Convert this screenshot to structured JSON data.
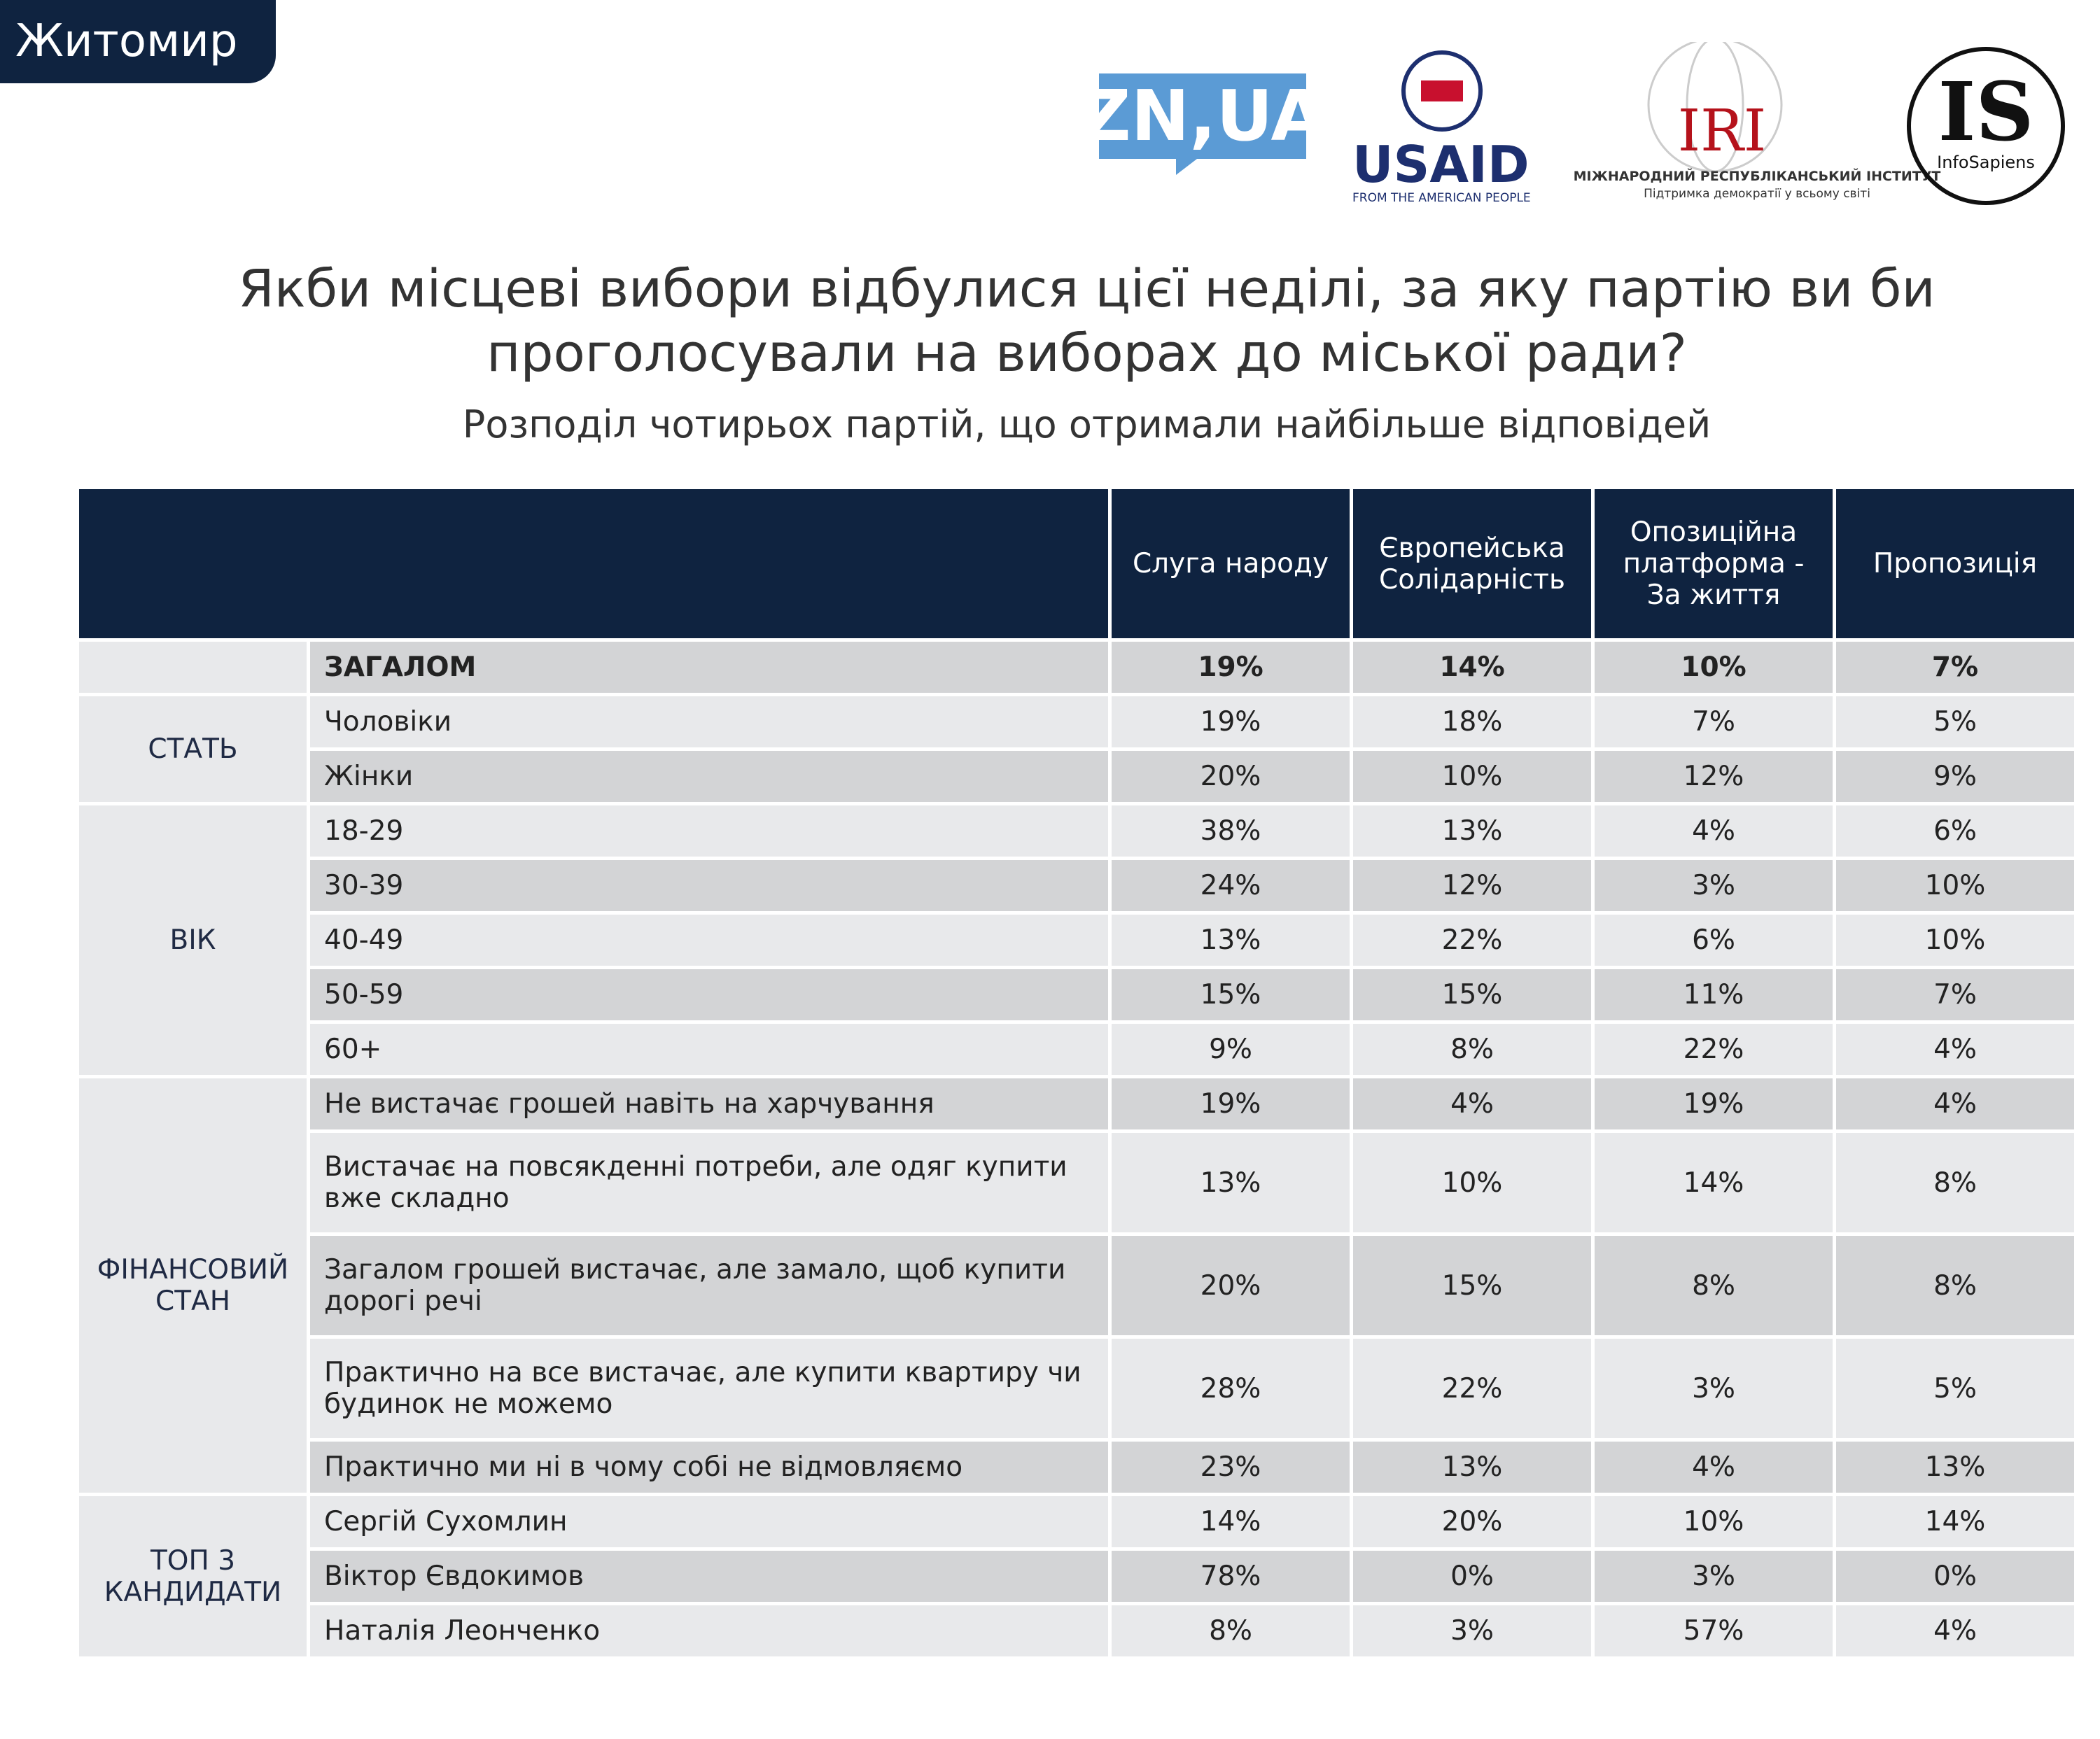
{
  "header": {
    "region": "Житомир",
    "logos": {
      "zn": "ZN,UA",
      "usaid": "USAID",
      "usaid_tagline": "FROM THE AMERICAN PEOPLE",
      "iri": "IRI",
      "iri_name": "МІЖНАРОДНИЙ РЕСПУБЛІКАНСЬКИЙ ІНСТИТУТ",
      "iri_tagline": "Підтримка демократії у всьому світі",
      "is": "IS",
      "is_name": "InfoSapiens"
    }
  },
  "title": [
    "Якби місцеві вибори відбулися цієї неділі, за яку партію ви би",
    "проголосували на виборах до міської ради?"
  ],
  "subtitle": "Розподіл чотирьох партій, що отримали найбільше відповідей",
  "table": {
    "columns": [
      "Слуга народу",
      "Європейська Солідарність",
      "Опозиційна платформа - За життя",
      "Пропозиція"
    ],
    "groups": [
      {
        "name": null,
        "rows": [
          {
            "label": "ЗАГАЛОМ",
            "values": [
              "19%",
              "14%",
              "10%",
              "7%"
            ]
          }
        ]
      },
      {
        "name": "СТАТЬ",
        "rows": [
          {
            "label": "Чоловіки",
            "values": [
              "19%",
              "18%",
              "7%",
              "5%"
            ]
          },
          {
            "label": "Жінки",
            "values": [
              "20%",
              "10%",
              "12%",
              "9%"
            ]
          }
        ]
      },
      {
        "name": "ВІК",
        "rows": [
          {
            "label": "18-29",
            "values": [
              "38%",
              "13%",
              "4%",
              "6%"
            ]
          },
          {
            "label": "30-39",
            "values": [
              "24%",
              "12%",
              "3%",
              "10%"
            ]
          },
          {
            "label": "40-49",
            "values": [
              "13%",
              "22%",
              "6%",
              "10%"
            ]
          },
          {
            "label": "50-59",
            "values": [
              "15%",
              "15%",
              "11%",
              "7%"
            ]
          },
          {
            "label": "60+",
            "values": [
              "9%",
              "8%",
              "22%",
              "4%"
            ]
          }
        ]
      },
      {
        "name": "ФІНАНСОВИЙ СТАН",
        "rows": [
          {
            "label": "Не вистачає грошей навіть на харчування",
            "values": [
              "19%",
              "4%",
              "19%",
              "4%"
            ]
          },
          {
            "label": "Вистачає на повсякденні потреби, але одяг купити вже складно",
            "values": [
              "13%",
              "10%",
              "14%",
              "8%"
            ]
          },
          {
            "label": "Загалом грошей вистачає, але замало, щоб купити дорогі речі",
            "values": [
              "20%",
              "15%",
              "8%",
              "8%"
            ]
          },
          {
            "label": "Практично на все вистачає, але купити квартиру чи будинок не можемо",
            "values": [
              "28%",
              "22%",
              "3%",
              "5%"
            ]
          },
          {
            "label": "Практично ми ні в чому собі не відмовляємо",
            "values": [
              "23%",
              "13%",
              "4%",
              "13%"
            ]
          }
        ]
      },
      {
        "name": "ТОП 3 КАНДИДАТИ",
        "rows": [
          {
            "label": "Сергій Сухомлин",
            "values": [
              "14%",
              "20%",
              "10%",
              "14%"
            ]
          },
          {
            "label": "Віктор Євдокимов",
            "values": [
              "78%",
              "0%",
              "3%",
              "0%"
            ]
          },
          {
            "label": "Наталія Леонченко",
            "values": [
              "8%",
              "3%",
              "57%",
              "4%"
            ]
          }
        ]
      }
    ]
  }
}
